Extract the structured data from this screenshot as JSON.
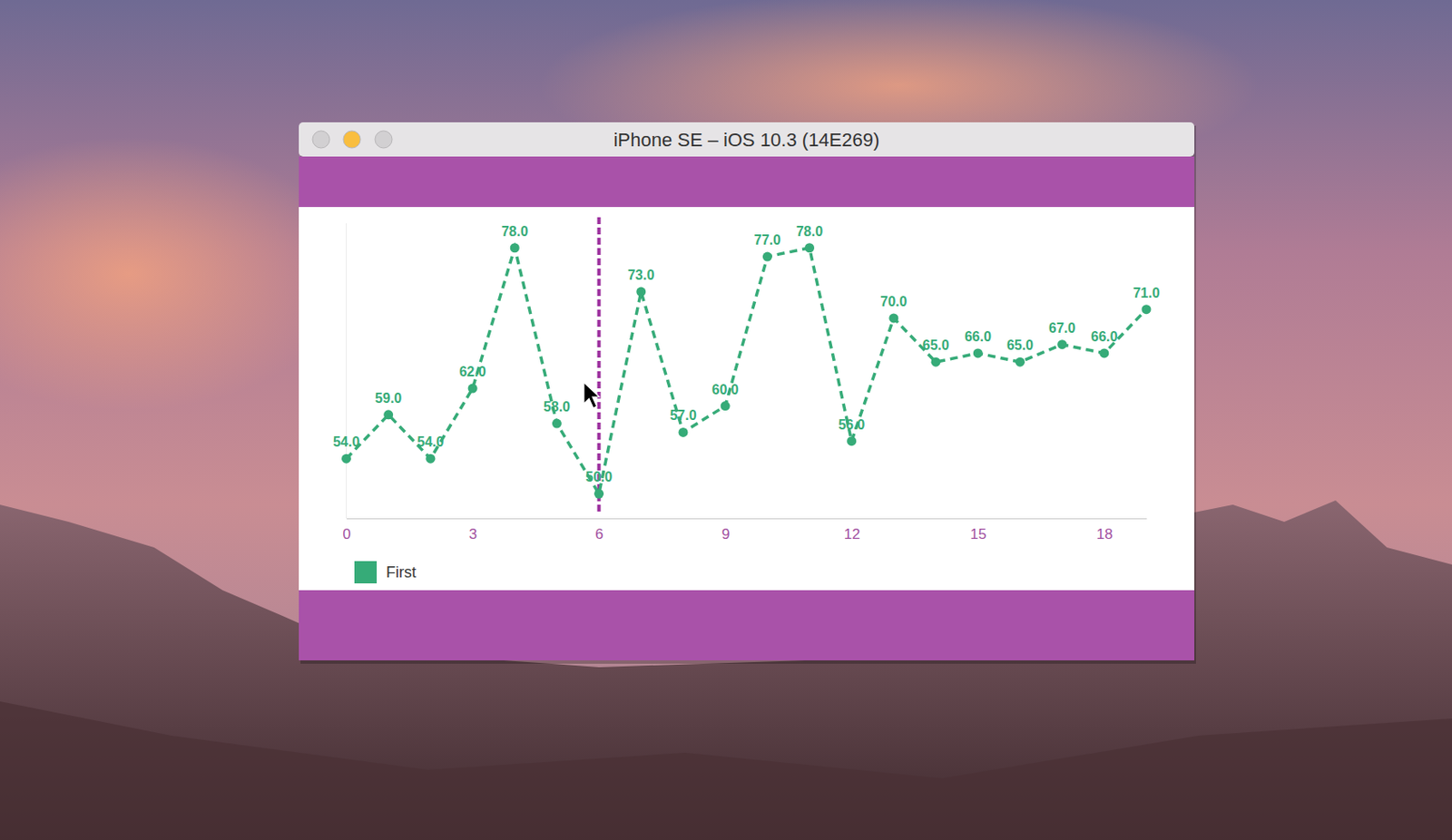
{
  "window": {
    "title": "iPhone SE – iOS 10.3 (14E269)"
  },
  "chart_data": {
    "type": "line",
    "x": [
      0,
      1,
      2,
      3,
      4,
      5,
      6,
      7,
      8,
      9,
      10,
      11,
      12,
      13,
      14,
      15,
      16,
      17,
      18,
      19
    ],
    "series": [
      {
        "name": "First",
        "color": "#36ab78",
        "line_style": "dashed",
        "marker": "circle",
        "values": [
          54,
          59,
          54,
          62,
          78,
          58,
          50,
          73,
          57,
          60,
          77,
          78,
          56,
          70,
          65,
          66,
          65,
          67,
          66,
          71
        ],
        "value_labels": [
          "54.0",
          "59.0",
          "54.0",
          "62.0",
          "78.0",
          "58.0",
          "50.0",
          "73.0",
          "57.0",
          "60.0",
          "77.0",
          "78.0",
          "56.0",
          "70.0",
          "65.0",
          "66.0",
          "65.0",
          "67.0",
          "66.0",
          "71.0"
        ]
      }
    ],
    "xlim": [
      0,
      19
    ],
    "xticks": [
      0,
      3,
      6,
      9,
      12,
      15,
      18
    ],
    "ylim": [
      47.2,
      80.8
    ],
    "tick_labels": "x",
    "data_labels": true,
    "grid": false,
    "legend": "bottom-left",
    "highlight_x": 6
  }
}
